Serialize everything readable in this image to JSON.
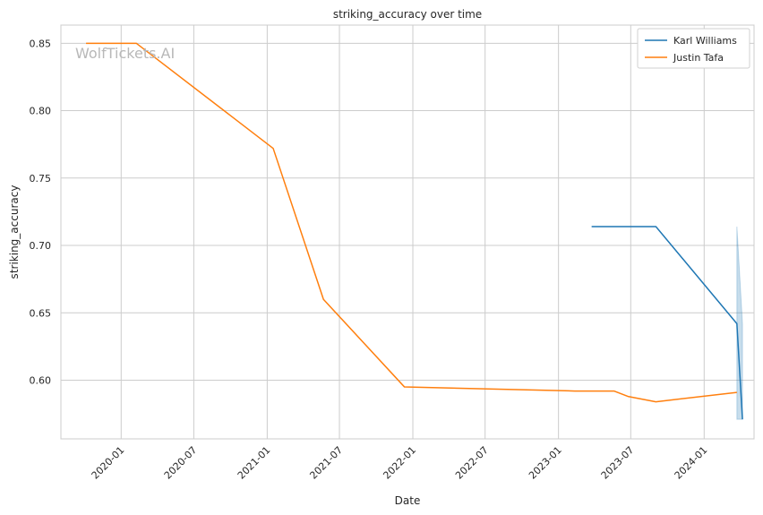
{
  "chart_data": {
    "type": "line",
    "title": "striking_accuracy over time",
    "xlabel": "Date",
    "ylabel": "striking_accuracy",
    "watermark": "WolfTickets.AI",
    "xlim": [
      "2019-08-03",
      "2024-05-05"
    ],
    "ylim": [
      0.5565,
      0.8635
    ],
    "x_ticks": [
      "2020-01",
      "2020-07",
      "2021-01",
      "2021-07",
      "2022-01",
      "2022-07",
      "2023-01",
      "2023-07",
      "2024-01"
    ],
    "y_ticks": [
      "0.60",
      "0.65",
      "0.70",
      "0.75",
      "0.80",
      "0.85"
    ],
    "grid": true,
    "legend_position": "top-right",
    "series": [
      {
        "name": "Karl Williams",
        "color": "#1f77b4",
        "x": [
          "2023-03-25",
          "2023-09-02",
          "2024-03-23",
          "2024-04-06"
        ],
        "y": [
          0.714,
          0.714,
          0.642,
          0.571
        ],
        "band": {
          "x": [
            "2024-03-23",
            "2024-04-06"
          ],
          "low": [
            0.571,
            0.571
          ],
          "high": [
            0.714,
            0.642
          ]
        }
      },
      {
        "name": "Justin Tafa",
        "color": "#ff7f0e",
        "x": [
          "2019-10-05",
          "2020-02-08",
          "2021-01-16",
          "2021-05-22",
          "2021-12-11",
          "2023-02-11",
          "2023-05-20",
          "2023-06-24",
          "2023-09-02",
          "2024-03-23"
        ],
        "y": [
          0.85,
          0.85,
          0.772,
          0.66,
          0.595,
          0.592,
          0.592,
          0.588,
          0.584,
          0.591
        ]
      }
    ]
  }
}
